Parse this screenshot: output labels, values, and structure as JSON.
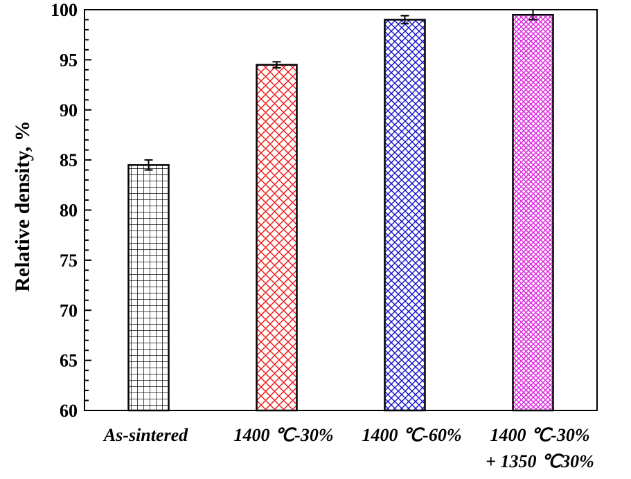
{
  "chart_data": {
    "type": "bar",
    "title": "",
    "xlabel": "",
    "ylabel": "Relative density, %",
    "ylim": [
      60,
      100
    ],
    "yticks": [
      "60",
      "65",
      "70",
      "75",
      "80",
      "85",
      "90",
      "95",
      "100"
    ],
    "categories": [
      [
        "As-sintered"
      ],
      [
        "1400 ℃-30%"
      ],
      [
        "1400 ℃-60%"
      ],
      [
        "1400 ℃-30%",
        "+ 1350 ℃30%"
      ]
    ],
    "values": [
      84.5,
      94.5,
      99.0,
      99.5
    ],
    "errors": [
      0.5,
      0.3,
      0.4,
      0.5
    ],
    "colors": [
      "#000000",
      "#ee1111",
      "#1111cc",
      "#dd22dd"
    ],
    "patterns": [
      "square-grid",
      "diagonal-cross",
      "diagonal-cross-fine",
      "diagonal-cross-dense"
    ],
    "grid": false,
    "legend": "none"
  }
}
